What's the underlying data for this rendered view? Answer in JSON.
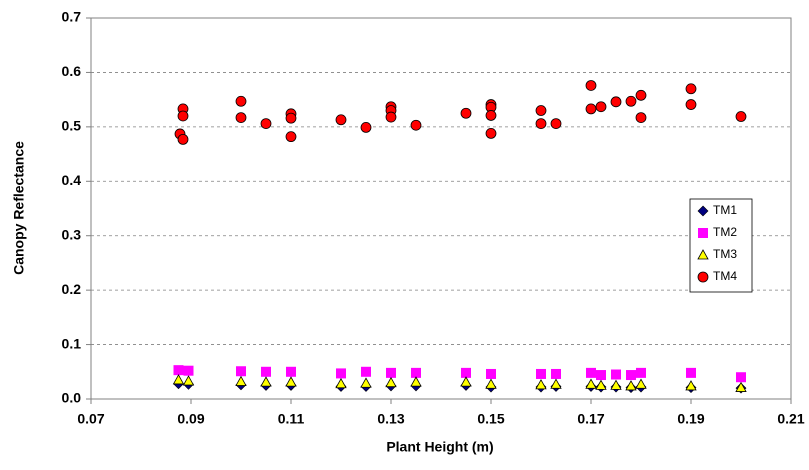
{
  "chart_data": {
    "type": "scatter",
    "x_label": "Plant Height (m)",
    "y_label": "Canopy Reflectance",
    "xlim": [
      0.07,
      0.21
    ],
    "xticks": [
      0.07,
      0.09,
      0.11,
      0.13,
      0.15,
      0.17,
      0.19,
      0.21
    ],
    "ylim": [
      0,
      0.7
    ],
    "yticks": [
      {
        "value": 0,
        "label": "0.0"
      },
      0.1,
      0.2,
      0.3,
      0.4,
      0.5,
      0.6,
      0.7
    ],
    "grid": true,
    "legend": "right",
    "series": [
      {
        "name": "TM1",
        "color": "#000080",
        "marker": "diamond",
        "x": [
          0.0875,
          0.0895,
          0.1,
          0.105,
          0.11,
          0.12,
          0.125,
          0.13,
          0.135,
          0.145,
          0.15,
          0.16,
          0.163,
          0.17,
          0.172,
          0.175,
          0.178,
          0.18,
          0.19,
          0.2
        ],
        "values": [
          0.028,
          0.027,
          0.026,
          0.025,
          0.025,
          0.023,
          0.023,
          0.024,
          0.024,
          0.025,
          0.022,
          0.022,
          0.023,
          0.023,
          0.022,
          0.022,
          0.021,
          0.022,
          0.021,
          0.02
        ]
      },
      {
        "name": "TM2",
        "color": "#ff00ff",
        "marker": "square",
        "x": [
          0.0875,
          0.0895,
          0.1,
          0.105,
          0.11,
          0.12,
          0.125,
          0.13,
          0.135,
          0.145,
          0.15,
          0.16,
          0.163,
          0.17,
          0.172,
          0.175,
          0.178,
          0.18,
          0.19,
          0.2
        ],
        "values": [
          0.053,
          0.052,
          0.051,
          0.05,
          0.05,
          0.047,
          0.05,
          0.048,
          0.048,
          0.048,
          0.046,
          0.046,
          0.046,
          0.048,
          0.044,
          0.045,
          0.044,
          0.048,
          0.048,
          0.04
        ]
      },
      {
        "name": "TM3",
        "color": "#ffff00",
        "marker": "triangle",
        "x": [
          0.0875,
          0.0895,
          0.1,
          0.105,
          0.11,
          0.12,
          0.125,
          0.13,
          0.135,
          0.145,
          0.15,
          0.16,
          0.163,
          0.17,
          0.172,
          0.175,
          0.178,
          0.18,
          0.19,
          0.2
        ],
        "values": [
          0.035,
          0.033,
          0.032,
          0.031,
          0.031,
          0.028,
          0.029,
          0.03,
          0.031,
          0.031,
          0.027,
          0.026,
          0.027,
          0.027,
          0.025,
          0.025,
          0.024,
          0.027,
          0.024,
          0.021
        ]
      },
      {
        "name": "TM4",
        "color": "#ff0000",
        "marker": "circle",
        "x": [
          0.0878,
          0.0884,
          0.0884,
          0.0884,
          0.1,
          0.1,
          0.105,
          0.11,
          0.11,
          0.11,
          0.12,
          0.125,
          0.13,
          0.13,
          0.13,
          0.135,
          0.145,
          0.15,
          0.15,
          0.15,
          0.15,
          0.16,
          0.16,
          0.163,
          0.17,
          0.17,
          0.172,
          0.175,
          0.178,
          0.18,
          0.18,
          0.19,
          0.19,
          0.2
        ],
        "values": [
          0.487,
          0.533,
          0.52,
          0.477,
          0.547,
          0.517,
          0.506,
          0.524,
          0.516,
          0.482,
          0.513,
          0.499,
          0.537,
          0.53,
          0.518,
          0.503,
          0.525,
          0.541,
          0.536,
          0.521,
          0.488,
          0.53,
          0.506,
          0.506,
          0.576,
          0.533,
          0.537,
          0.546,
          0.547,
          0.558,
          0.517,
          0.57,
          0.541,
          0.519
        ]
      }
    ]
  }
}
